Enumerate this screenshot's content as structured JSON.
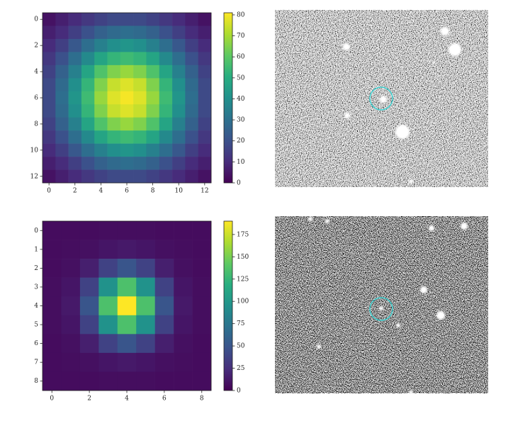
{
  "chart_data": [
    {
      "type": "heatmap",
      "colormap": "viridis",
      "xlim": [
        -0.5,
        12.5
      ],
      "ylim": [
        12.5,
        -0.5
      ],
      "clim": [
        0,
        81
      ],
      "xticks": [
        0,
        2,
        4,
        6,
        8,
        10,
        12
      ],
      "yticks": [
        0,
        2,
        4,
        6,
        8,
        10,
        12
      ],
      "cticks": [
        0,
        10,
        20,
        30,
        40,
        50,
        60,
        70,
        80
      ],
      "values": [
        [
          4,
          7,
          10,
          13,
          16,
          18,
          18,
          18,
          16,
          13,
          10,
          7,
          4
        ],
        [
          7,
          10,
          15,
          20,
          25,
          28,
          29,
          28,
          25,
          20,
          15,
          10,
          7
        ],
        [
          10,
          15,
          22,
          29,
          35,
          40,
          42,
          40,
          35,
          29,
          22,
          15,
          10
        ],
        [
          13,
          20,
          29,
          38,
          47,
          53,
          55,
          53,
          47,
          38,
          29,
          20,
          13
        ],
        [
          16,
          25,
          35,
          47,
          58,
          65,
          68,
          65,
          58,
          47,
          35,
          25,
          16
        ],
        [
          18,
          28,
          40,
          53,
          65,
          74,
          77,
          74,
          65,
          53,
          40,
          28,
          18
        ],
        [
          18,
          29,
          42,
          55,
          68,
          77,
          80,
          77,
          68,
          55,
          42,
          29,
          18
        ],
        [
          18,
          28,
          40,
          53,
          65,
          74,
          77,
          74,
          65,
          53,
          40,
          28,
          18
        ],
        [
          16,
          25,
          35,
          47,
          58,
          65,
          68,
          65,
          58,
          47,
          35,
          25,
          16
        ],
        [
          13,
          20,
          29,
          38,
          47,
          53,
          55,
          53,
          47,
          38,
          29,
          20,
          13
        ],
        [
          10,
          15,
          22,
          29,
          35,
          40,
          42,
          40,
          35,
          29,
          22,
          15,
          10
        ],
        [
          7,
          10,
          15,
          20,
          25,
          28,
          29,
          28,
          25,
          20,
          15,
          10,
          7
        ],
        [
          4,
          7,
          10,
          13,
          16,
          18,
          18,
          18,
          16,
          13,
          10,
          7,
          4
        ]
      ]
    },
    {
      "type": "heatmap",
      "colormap": "viridis",
      "xlim": [
        -0.5,
        8.5
      ],
      "ylim": [
        8.5,
        -0.5
      ],
      "clim": [
        0,
        190
      ],
      "xticks": [
        0,
        2,
        4,
        6,
        8
      ],
      "yticks": [
        0,
        1,
        2,
        3,
        4,
        5,
        6,
        7,
        8
      ],
      "cticks": [
        0,
        25,
        50,
        75,
        100,
        125,
        150,
        175
      ],
      "values": [
        [
          6,
          6,
          6,
          7,
          7,
          7,
          6,
          6,
          6
        ],
        [
          6,
          7,
          8,
          11,
          13,
          11,
          8,
          7,
          6
        ],
        [
          6,
          8,
          16,
          37,
          50,
          37,
          16,
          8,
          6
        ],
        [
          7,
          11,
          37,
          96,
          135,
          96,
          37,
          11,
          7
        ],
        [
          7,
          13,
          50,
          135,
          190,
          135,
          50,
          13,
          7
        ],
        [
          7,
          11,
          37,
          96,
          135,
          96,
          37,
          11,
          7
        ],
        [
          6,
          8,
          16,
          37,
          50,
          37,
          16,
          8,
          6
        ],
        [
          6,
          7,
          8,
          11,
          13,
          11,
          8,
          7,
          6
        ],
        [
          6,
          6,
          6,
          7,
          7,
          7,
          6,
          6,
          6
        ]
      ]
    }
  ]
}
